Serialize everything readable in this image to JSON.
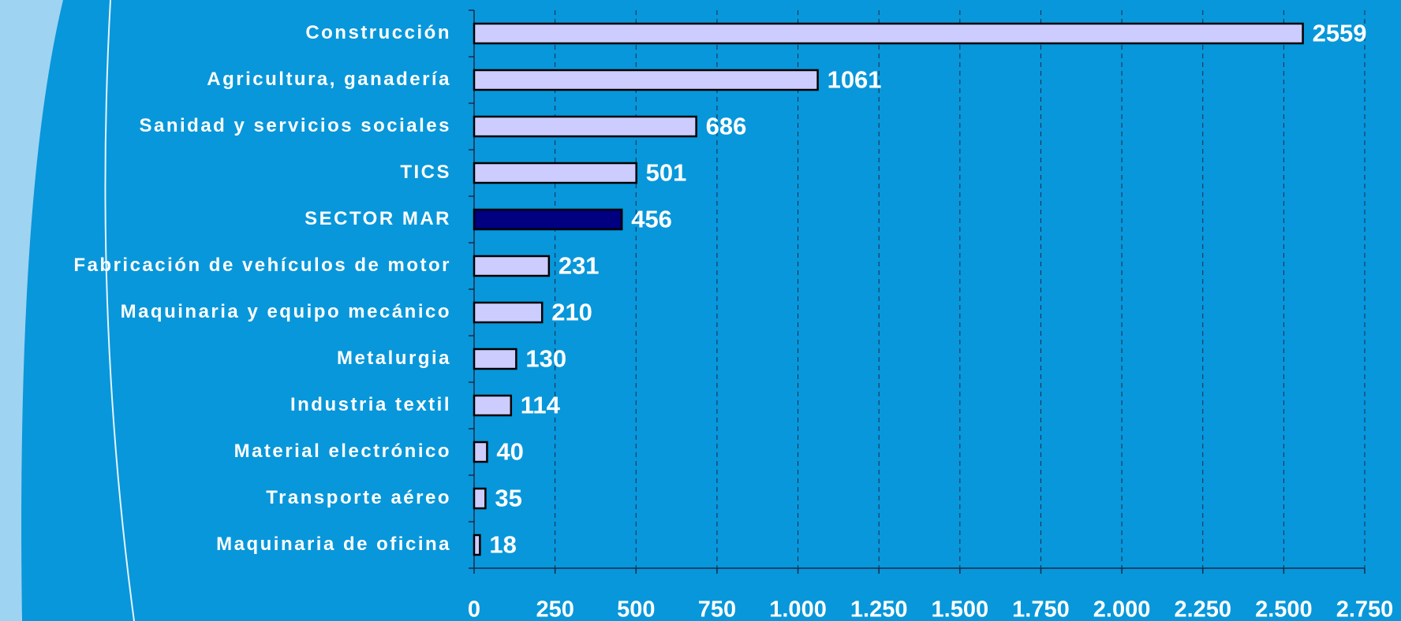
{
  "chart_data": {
    "type": "hbar",
    "categories": [
      "Construcción",
      "Agricultura, ganadería",
      "Sanidad y servicios sociales",
      "TICS",
      "SECTOR MAR",
      "Fabricación de vehículos de motor",
      "Maquinaria y equipo mecánico",
      "Metalurgia",
      "Industria textil",
      "Material electrónico",
      "Transporte aéreo",
      "Maquinaria de oficina"
    ],
    "values": [
      2559,
      1061,
      686,
      501,
      456,
      231,
      210,
      130,
      114,
      40,
      35,
      18
    ],
    "colors": [
      "#ccccff",
      "#ccccff",
      "#ccccff",
      "#ccccff",
      "#000080",
      "#ccccff",
      "#ccccff",
      "#ccccff",
      "#ccccff",
      "#ccccff",
      "#ccccff",
      "#ccccff"
    ],
    "xlim": [
      0,
      2750
    ],
    "xticks": [
      0,
      250,
      500,
      750,
      {
        "value": 1000,
        "label": "1.000"
      },
      {
        "value": 1250,
        "label": "1.250"
      },
      {
        "value": 1500,
        "label": "1.500"
      },
      {
        "value": 1750,
        "label": "1.750"
      },
      {
        "value": 2000,
        "label": "2.000"
      },
      {
        "value": 2250,
        "label": "2.250"
      },
      {
        "value": 2500,
        "label": "2.500"
      },
      {
        "value": 2750,
        "label": "2.750"
      }
    ],
    "grid": true
  }
}
